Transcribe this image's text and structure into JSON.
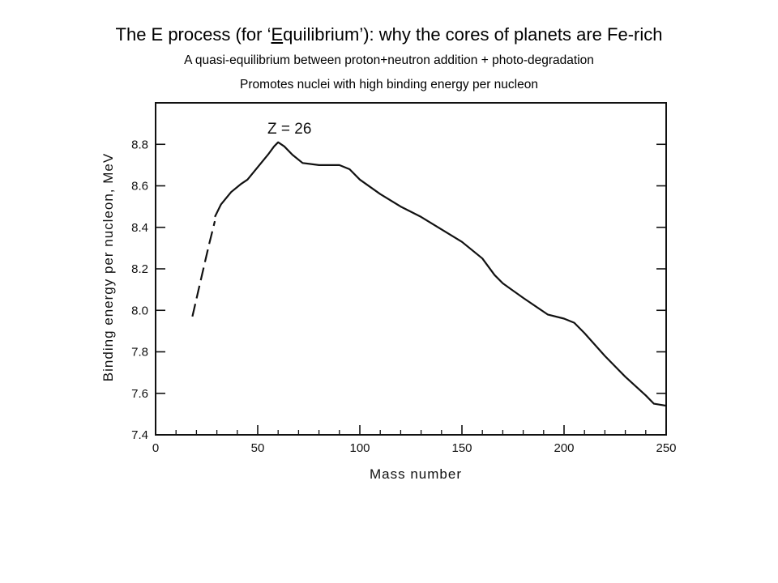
{
  "slide": {
    "title_prefix": "The E process (for ‘",
    "title_underlined": "E",
    "title_word_rest": "quilibrium",
    "title_suffix": "’): why the cores of planets are Fe-rich",
    "subtitle_1": "A quasi-equilibrium between proton+neutron addition + photo-degradation",
    "subtitle_2": "Promotes nuclei with high binding energy per nucleon"
  },
  "chart_data": {
    "type": "line",
    "xlabel": "Mass number",
    "ylabel": "Binding energy per nucleon,  MeV",
    "xlim": [
      0,
      250
    ],
    "ylim": [
      7.4,
      9.0
    ],
    "x_ticks": [
      0,
      50,
      100,
      150,
      200,
      250
    ],
    "x_tick_labels": [
      "0",
      "50",
      "100",
      "150",
      "200",
      "250"
    ],
    "y_ticks": [
      7.4,
      7.6,
      7.8,
      8.0,
      8.2,
      8.4,
      8.6,
      8.8
    ],
    "y_tick_labels": [
      "7.4",
      "7.6",
      "7.8",
      "8.0",
      "8.2",
      "8.4",
      "8.6",
      "8.8"
    ],
    "annotation": {
      "text": "Z = 26",
      "x": 60,
      "y": 8.81
    },
    "series": [
      {
        "style": "dashed",
        "x": [
          18,
          22,
          26,
          29
        ],
        "y": [
          7.97,
          8.14,
          8.31,
          8.43
        ]
      },
      {
        "style": "solid",
        "x": [
          29,
          32,
          37,
          42,
          45,
          50,
          55,
          58,
          60,
          63,
          67,
          72,
          80,
          90,
          95,
          100,
          110,
          120,
          130,
          140,
          150,
          160,
          166,
          170,
          180,
          192,
          200,
          205,
          210,
          220,
          230,
          240,
          244,
          250
        ],
        "y": [
          8.45,
          8.51,
          8.57,
          8.61,
          8.63,
          8.69,
          8.75,
          8.79,
          8.81,
          8.79,
          8.75,
          8.71,
          8.7,
          8.7,
          8.68,
          8.63,
          8.56,
          8.5,
          8.45,
          8.39,
          8.33,
          8.25,
          8.17,
          8.13,
          8.06,
          7.98,
          7.96,
          7.94,
          7.89,
          7.78,
          7.68,
          7.59,
          7.55,
          7.54
        ]
      }
    ]
  }
}
